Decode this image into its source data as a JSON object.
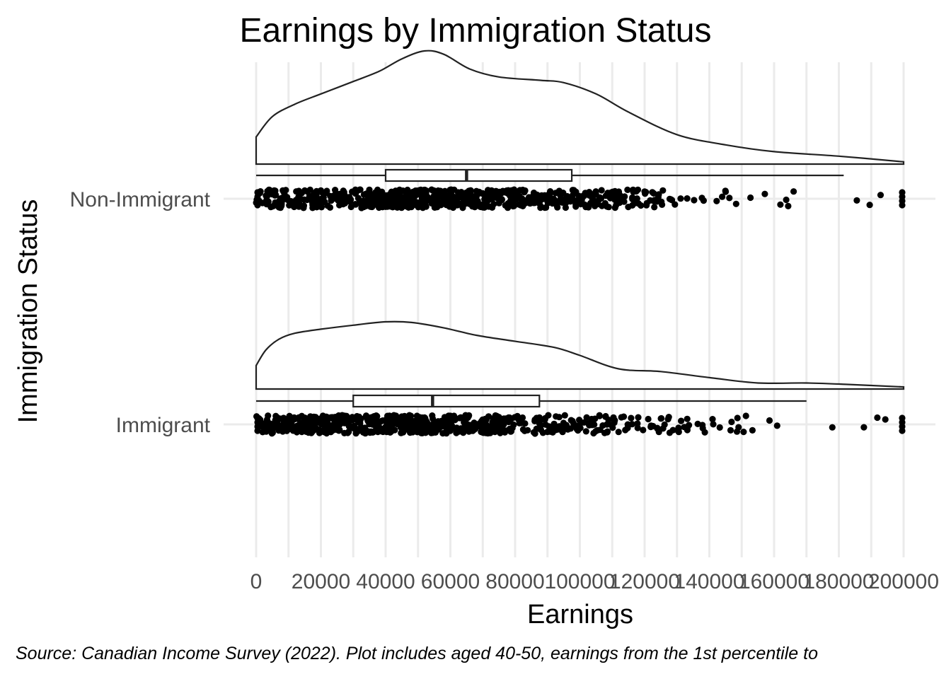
{
  "chart_data": {
    "type": "raincloud",
    "title": "Earnings by Immigration Status",
    "xlabel": "Earnings",
    "ylabel": "Immigration Status",
    "caption": "Source: Canadian Income Survey (2022). Plot includes aged 40-50, earnings from the 1st percentile to",
    "xlim": [
      0,
      200000
    ],
    "x_ticks": [
      0,
      20000,
      40000,
      60000,
      80000,
      100000,
      120000,
      140000,
      160000,
      180000,
      200000
    ],
    "x_tick_labels": [
      "0",
      "20000",
      "40000",
      "60000",
      "80000",
      "100000",
      "120000",
      "140000",
      "160000",
      "180000",
      "200000"
    ],
    "grid": true,
    "categories": [
      "Immigrant",
      "Non-Immigrant"
    ],
    "series": [
      {
        "name": "Immigrant",
        "box": {
          "min": 0,
          "q1": 30000,
          "median": 54500,
          "q3": 87500,
          "max": 170000
        },
        "density": [
          [
            0,
            0.35
          ],
          [
            3000,
            0.58
          ],
          [
            7000,
            0.74
          ],
          [
            12000,
            0.83
          ],
          [
            20000,
            0.89
          ],
          [
            30000,
            0.95
          ],
          [
            40000,
            1.0
          ],
          [
            48000,
            0.99
          ],
          [
            58000,
            0.91
          ],
          [
            68000,
            0.8
          ],
          [
            80000,
            0.71
          ],
          [
            92000,
            0.62
          ],
          [
            100000,
            0.5
          ],
          [
            112000,
            0.3
          ],
          [
            125000,
            0.26
          ],
          [
            140000,
            0.17
          ],
          [
            155000,
            0.09
          ],
          [
            170000,
            0.09
          ],
          [
            182000,
            0.07
          ],
          [
            200000,
            0.03
          ]
        ]
      },
      {
        "name": "Non-Immigrant",
        "box": {
          "min": 0,
          "q1": 40000,
          "median": 65000,
          "q3": 97500,
          "max": 181500
        },
        "density": [
          [
            0,
            0.24
          ],
          [
            5000,
            0.42
          ],
          [
            12000,
            0.53
          ],
          [
            20000,
            0.62
          ],
          [
            30000,
            0.73
          ],
          [
            38000,
            0.82
          ],
          [
            45000,
            0.93
          ],
          [
            52000,
            1.0
          ],
          [
            58000,
            0.97
          ],
          [
            66000,
            0.84
          ],
          [
            75000,
            0.77
          ],
          [
            88000,
            0.74
          ],
          [
            95000,
            0.72
          ],
          [
            105000,
            0.62
          ],
          [
            115000,
            0.46
          ],
          [
            130000,
            0.26
          ],
          [
            145000,
            0.17
          ],
          [
            160000,
            0.11
          ],
          [
            180000,
            0.07
          ],
          [
            200000,
            0.02
          ]
        ]
      }
    ]
  }
}
